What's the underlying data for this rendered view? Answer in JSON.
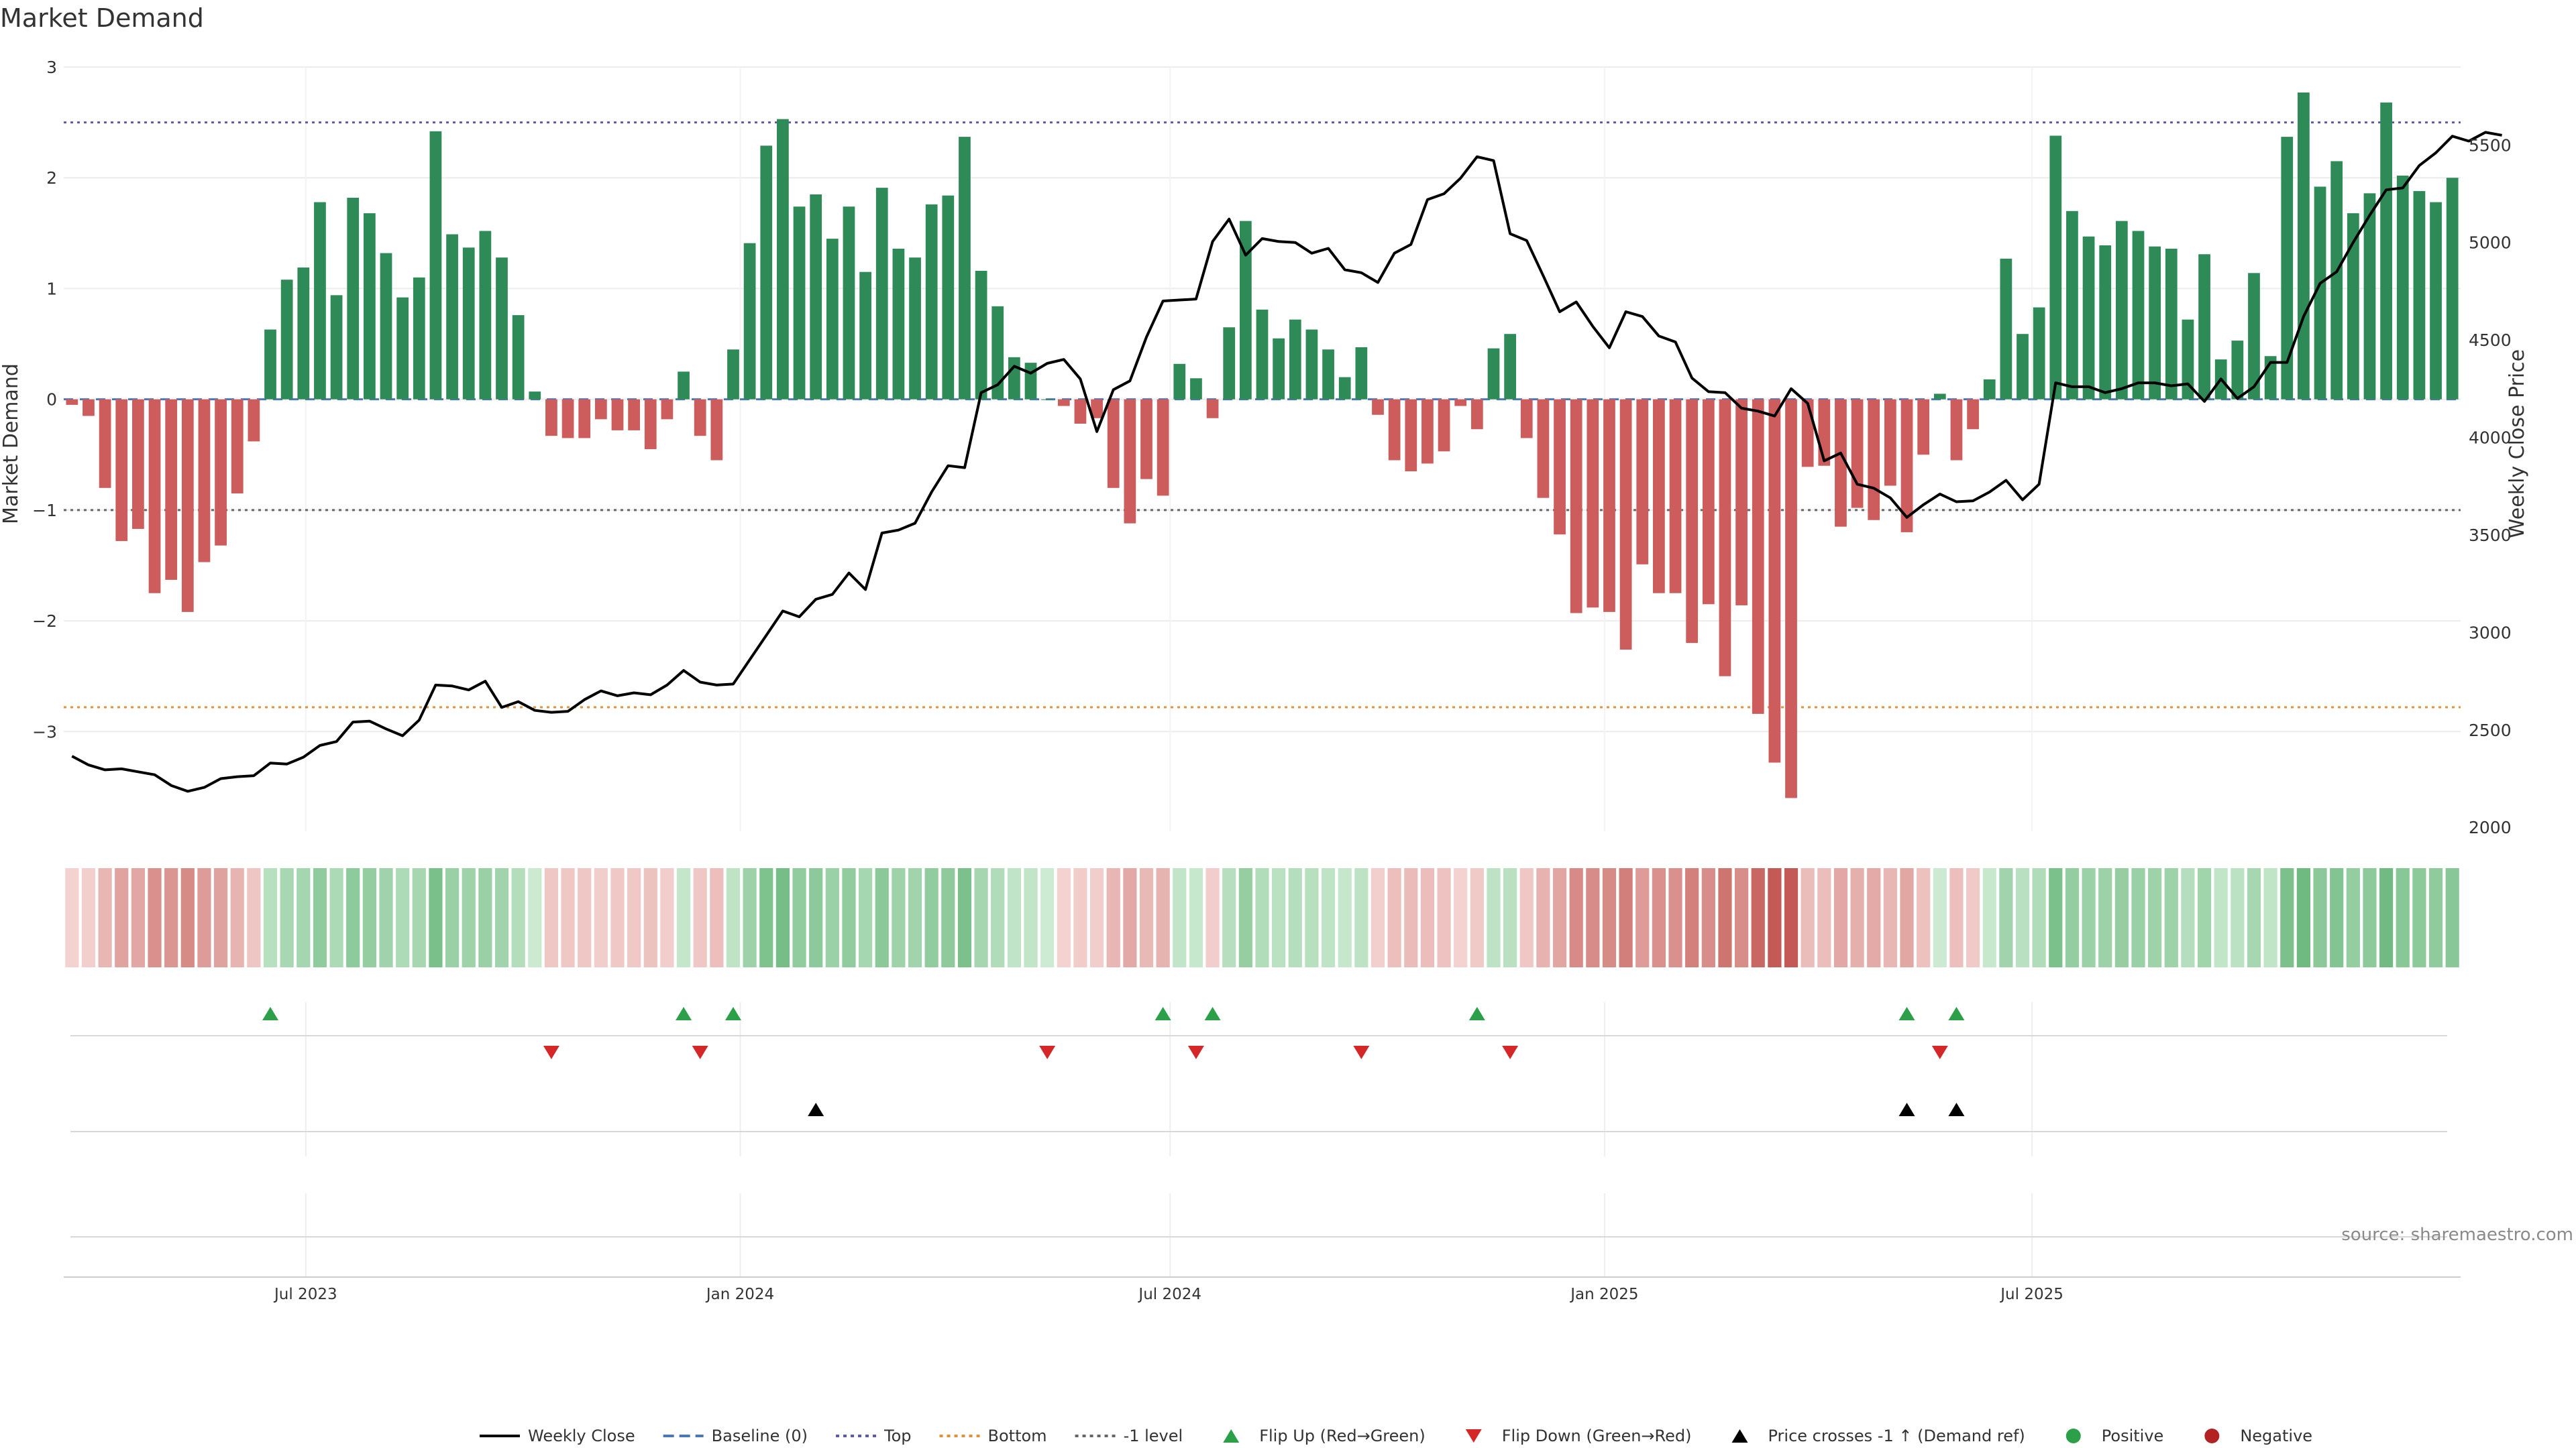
{
  "chart_data": {
    "type": "bar",
    "title": "Market Demand",
    "ylabel": "Market Demand",
    "y2label": "Weekly Close Price",
    "ylim": [
      -3.9,
      3.0
    ],
    "y2lim": [
      1980,
      5900
    ],
    "yticks": [
      3,
      2,
      1,
      0,
      -1,
      -2,
      -3
    ],
    "ytick_labels": [
      "3",
      "2",
      "1",
      "0",
      "−1",
      "−2",
      "−3"
    ],
    "y2ticks": [
      5500,
      5000,
      4500,
      4000,
      3500,
      3000,
      2500,
      2000
    ],
    "y2tick_labels": [
      "5500",
      "5000",
      "4500",
      "4000",
      "3500",
      "3000",
      "2500",
      "2000"
    ],
    "x_start": "2023-03-24",
    "x_step_days": 7,
    "xticks": [
      "2023-07-01",
      "2024-01-01",
      "2024-07-01",
      "2025-01-01",
      "2025-07-01"
    ],
    "xtick_labels": [
      "Jul 2023",
      "Jan 2024",
      "Jul 2024",
      "Jan 2025",
      "Jul 2025"
    ],
    "levels": {
      "top": 2.5,
      "bottom": -2.78,
      "minus_one": -1.0,
      "baseline": 0
    },
    "demand": [
      -0.05,
      -0.15,
      -0.8,
      -1.28,
      -1.17,
      -1.75,
      -1.63,
      -1.92,
      -1.47,
      -1.32,
      -0.85,
      -0.38,
      0.63,
      1.08,
      1.19,
      1.78,
      0.94,
      1.82,
      1.68,
      1.32,
      0.92,
      1.1,
      2.42,
      1.49,
      1.37,
      1.52,
      1.28,
      0.76,
      0.07,
      -0.33,
      -0.35,
      -0.35,
      -0.18,
      -0.28,
      -0.28,
      -0.45,
      -0.18,
      0.25,
      -0.33,
      -0.55,
      0.45,
      1.41,
      2.29,
      2.53,
      1.74,
      1.85,
      1.45,
      1.74,
      1.15,
      1.91,
      1.36,
      1.28,
      1.76,
      1.84,
      2.37,
      1.16,
      0.84,
      0.38,
      0.33,
      0,
      -0.06,
      -0.22,
      -0.17,
      -0.8,
      -1.12,
      -0.72,
      -0.87,
      0.32,
      0.19,
      -0.17,
      0.65,
      1.61,
      0.81,
      0.55,
      0.72,
      0.63,
      0.45,
      0.2,
      0.47,
      -0.14,
      -0.55,
      -0.65,
      -0.58,
      -0.47,
      -0.06,
      -0.27,
      0.46,
      0.59,
      -0.35,
      -0.89,
      -1.22,
      -1.93,
      -1.88,
      -1.92,
      -2.26,
      -1.49,
      -1.75,
      -1.75,
      -2.2,
      -1.85,
      -2.5,
      -1.86,
      -2.84,
      -3.28,
      -3.6,
      -0.61,
      -0.6,
      -1.15,
      -0.98,
      -1.09,
      -0.78,
      -1.2,
      -0.5,
      0.05,
      -0.55,
      -0.27,
      0.18,
      1.27,
      0.59,
      0.83,
      2.38,
      1.7,
      1.47,
      1.39,
      1.61,
      1.52,
      1.38,
      1.36,
      0.72,
      1.31,
      0.36,
      0.53,
      1.14,
      0.39,
      2.37,
      2.77,
      1.92,
      2.15,
      1.68,
      1.86,
      2.68,
      2.02,
      1.88,
      1.78,
      2.0
    ],
    "weekly_close": [
      2365,
      2320,
      2295,
      2300,
      2285,
      2270,
      2215,
      2185,
      2205,
      2250,
      2260,
      2265,
      2330,
      2325,
      2360,
      2420,
      2440,
      2540,
      2545,
      2505,
      2470,
      2550,
      2730,
      2725,
      2705,
      2750,
      2615,
      2645,
      2600,
      2590,
      2595,
      2655,
      2700,
      2675,
      2690,
      2680,
      2730,
      2805,
      2745,
      2730,
      2735,
      2860,
      2985,
      3110,
      3080,
      3170,
      3195,
      3305,
      3220,
      3510,
      3525,
      3560,
      3720,
      3855,
      3845,
      4230,
      4270,
      4365,
      4330,
      4380,
      4400,
      4300,
      4030,
      4245,
      4290,
      4515,
      4700,
      4705,
      4710,
      5005,
      5120,
      4935,
      5020,
      5005,
      5000,
      4945,
      4970,
      4860,
      4845,
      4795,
      4945,
      4990,
      5220,
      5250,
      5330,
      5440,
      5420,
      5045,
      5010,
      4830,
      4645,
      4695,
      4570,
      4460,
      4645,
      4620,
      4520,
      4490,
      4305,
      4235,
      4230,
      4150,
      4135,
      4110,
      4250,
      4175,
      3880,
      3920,
      3760,
      3740,
      3690,
      3590,
      3655,
      3710,
      3670,
      3675,
      3720,
      3780,
      3680,
      3760,
      4280,
      4260,
      4260,
      4230,
      4250,
      4280,
      4280,
      4265,
      4275,
      4185,
      4300,
      4200,
      4260,
      4385,
      4385,
      4620,
      4790,
      4850,
      5000,
      5140,
      5270,
      5280,
      5395,
      5460,
      5545,
      5520,
      5565,
      5550
    ]
  },
  "flip_up_weeks": [
    12,
    37,
    40,
    66,
    69,
    85,
    111,
    114
  ],
  "flip_down_weeks": [
    29,
    38,
    59,
    68,
    78,
    87,
    113
  ],
  "price_cross_weeks": [
    45,
    111,
    114
  ],
  "source_note": "source: sharemaestro.com",
  "legend": [
    {
      "label": "Weekly Close",
      "kind": "line",
      "color": "#000000"
    },
    {
      "label": "Baseline (0)",
      "kind": "dash",
      "color": "#4a78b5"
    },
    {
      "label": "Top",
      "kind": "dot",
      "color": "#5b5ba8"
    },
    {
      "label": "Bottom",
      "kind": "dot",
      "color": "#e0923a"
    },
    {
      "label": "-1 level",
      "kind": "dot",
      "color": "#666666"
    },
    {
      "label": "Flip Up (Red→Green)",
      "kind": "tri-up",
      "color": "#2ca048"
    },
    {
      "label": "Flip Down (Green→Red)",
      "kind": "tri-down",
      "color": "#d62728"
    },
    {
      "label": "Price crosses -1 ↑ (Demand ref)",
      "kind": "tri-up",
      "color": "#000000"
    },
    {
      "label": "Positive",
      "kind": "dot-marker",
      "color": "#2ca048"
    },
    {
      "label": "Negative",
      "kind": "dot-marker",
      "color": "#b22222"
    }
  ],
  "colors": {
    "positive_bar": "#2e8b57",
    "negative_bar": "#cd5c5c",
    "price_line": "#000000",
    "top_line": "#5b5ba8",
    "bottom_line": "#e0923a",
    "minus_one_line": "#666666",
    "baseline": "#4a78b5",
    "flip_up": "#2ca048",
    "flip_down": "#d62728",
    "price_cross": "#000000"
  }
}
